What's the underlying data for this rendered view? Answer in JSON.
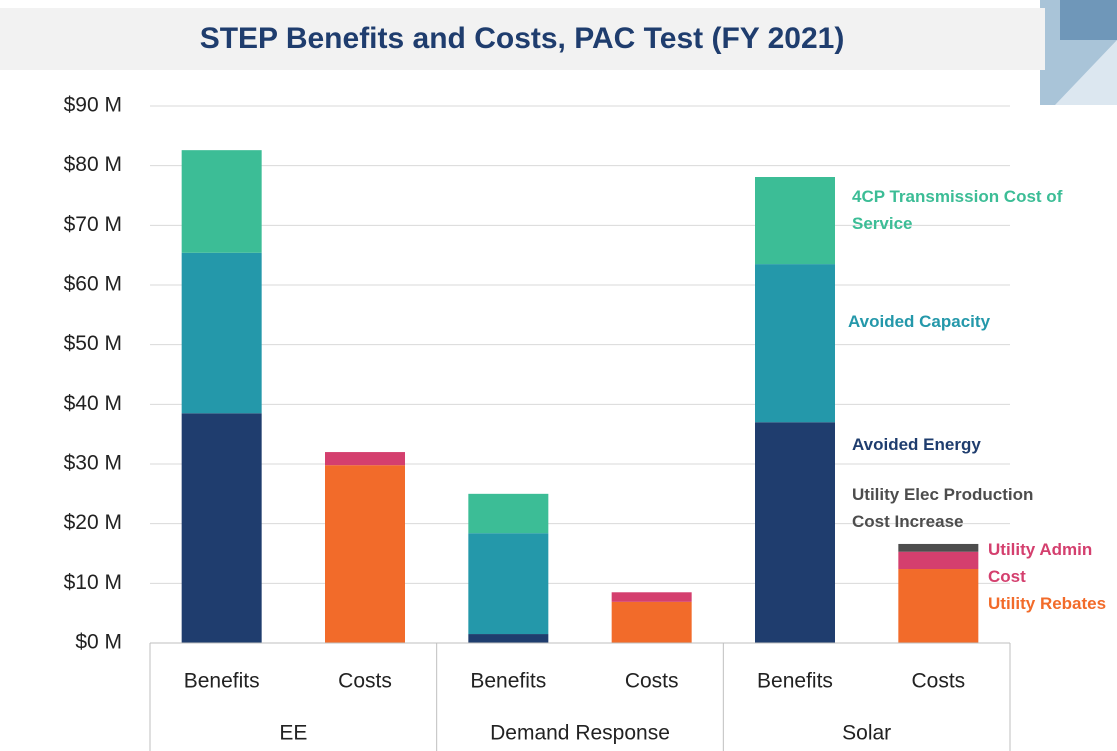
{
  "chart_data": {
    "type": "stacked_bar",
    "title": "STEP Benefits and Costs, PAC Test (FY 2021)",
    "categories": [
      "Benefits",
      "Costs",
      "Benefits",
      "Costs",
      "Benefits",
      "Costs"
    ],
    "groups": [
      {
        "name": "EE",
        "span": 2
      },
      {
        "name": "Demand Response",
        "span": 2
      },
      {
        "name": "Solar",
        "span": 2
      }
    ],
    "series": [
      {
        "name": "Avoided Energy",
        "color": "#1f3d6e",
        "values": [
          38.5,
          null,
          1.5,
          null,
          37.0,
          null
        ]
      },
      {
        "name": "Avoided Capacity",
        "color": "#2498aa",
        "values": [
          26.9,
          null,
          16.9,
          null,
          26.5,
          null
        ]
      },
      {
        "name": "4CP Transmission Cost of Service",
        "color": "#3cbd96",
        "values": [
          17.2,
          null,
          6.6,
          null,
          14.6,
          null
        ]
      },
      {
        "name": "Utility Rebates",
        "color": "#f26b2a",
        "values": [
          null,
          29.8,
          null,
          6.9,
          null,
          12.4
        ]
      },
      {
        "name": "Utility Admin Cost",
        "color": "#d43f6e",
        "values": [
          null,
          2.2,
          null,
          1.6,
          null,
          2.9
        ]
      },
      {
        "name": "Utility Elec Production Cost Increase",
        "color": "#4d4d4d",
        "values": [
          null,
          null,
          null,
          null,
          null,
          1.3
        ]
      }
    ],
    "ylim": [
      0,
      90
    ],
    "yticks": [
      {
        "value": 0,
        "label": "$0 M"
      },
      {
        "value": 10,
        "label": "$10 M"
      },
      {
        "value": 20,
        "label": "$20 M"
      },
      {
        "value": 30,
        "label": "$30 M"
      },
      {
        "value": 40,
        "label": "$40 M"
      },
      {
        "value": 50,
        "label": "$50 M"
      },
      {
        "value": 60,
        "label": "$60 M"
      },
      {
        "value": 70,
        "label": "$70 M"
      },
      {
        "value": 80,
        "label": "$80 M"
      },
      {
        "value": 90,
        "label": "$90 M"
      }
    ],
    "grid": true
  }
}
